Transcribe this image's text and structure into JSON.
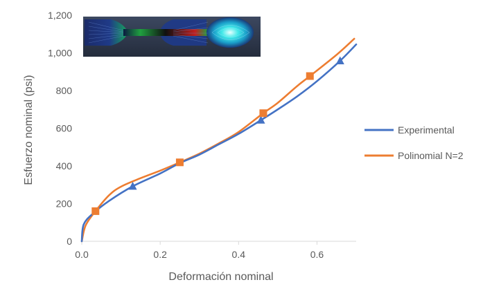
{
  "chart_data": {
    "type": "line",
    "xlabel": "Deformación nominal",
    "ylabel": "Esfuerzo nominal (psi)",
    "xlim": [
      0,
      0.7
    ],
    "ylim": [
      0,
      1200
    ],
    "x_ticks": [
      "0.0",
      "0.2",
      "0.4",
      "0.6"
    ],
    "x_tick_values": [
      0,
      0.2,
      0.4,
      0.6
    ],
    "y_ticks": [
      "0",
      "200",
      "400",
      "600",
      "800",
      "1,000",
      "1,200"
    ],
    "y_tick_values": [
      0,
      200,
      400,
      600,
      800,
      1000,
      1200
    ],
    "grid": false,
    "legend_position": "right",
    "inset_image": "fea-dogbone-specimen-contour",
    "series": [
      {
        "name": "Experimental",
        "color": "#4472C4",
        "marker": "triangle",
        "x": [
          0,
          0.005,
          0.03,
          0.07,
          0.13,
          0.2,
          0.25,
          0.3,
          0.35,
          0.4,
          0.457,
          0.5,
          0.55,
          0.6,
          0.659,
          0.7
        ],
        "y": [
          0,
          90,
          150,
          215,
          292,
          360,
          415,
          460,
          515,
          570,
          643,
          700,
          770,
          850,
          958,
          1045
        ],
        "marker_points": [
          [
            0.13,
            292
          ],
          [
            0.457,
            643
          ],
          [
            0.659,
            958
          ]
        ]
      },
      {
        "name": "Polinomial N=2",
        "color": "#ED7D31",
        "marker": "square",
        "x": [
          0,
          0.01,
          0.035,
          0.07,
          0.1,
          0.15,
          0.2,
          0.25,
          0.3,
          0.35,
          0.4,
          0.463,
          0.5,
          0.55,
          0.582,
          0.65,
          0.695
        ],
        "y": [
          0,
          85,
          160,
          245,
          290,
          335,
          375,
          419,
          465,
          520,
          580,
          680,
          735,
          825,
          877,
          990,
          1075
        ],
        "marker_points": [
          [
            0.035,
            160
          ],
          [
            0.25,
            419
          ],
          [
            0.463,
            680
          ],
          [
            0.582,
            877
          ]
        ]
      }
    ]
  }
}
